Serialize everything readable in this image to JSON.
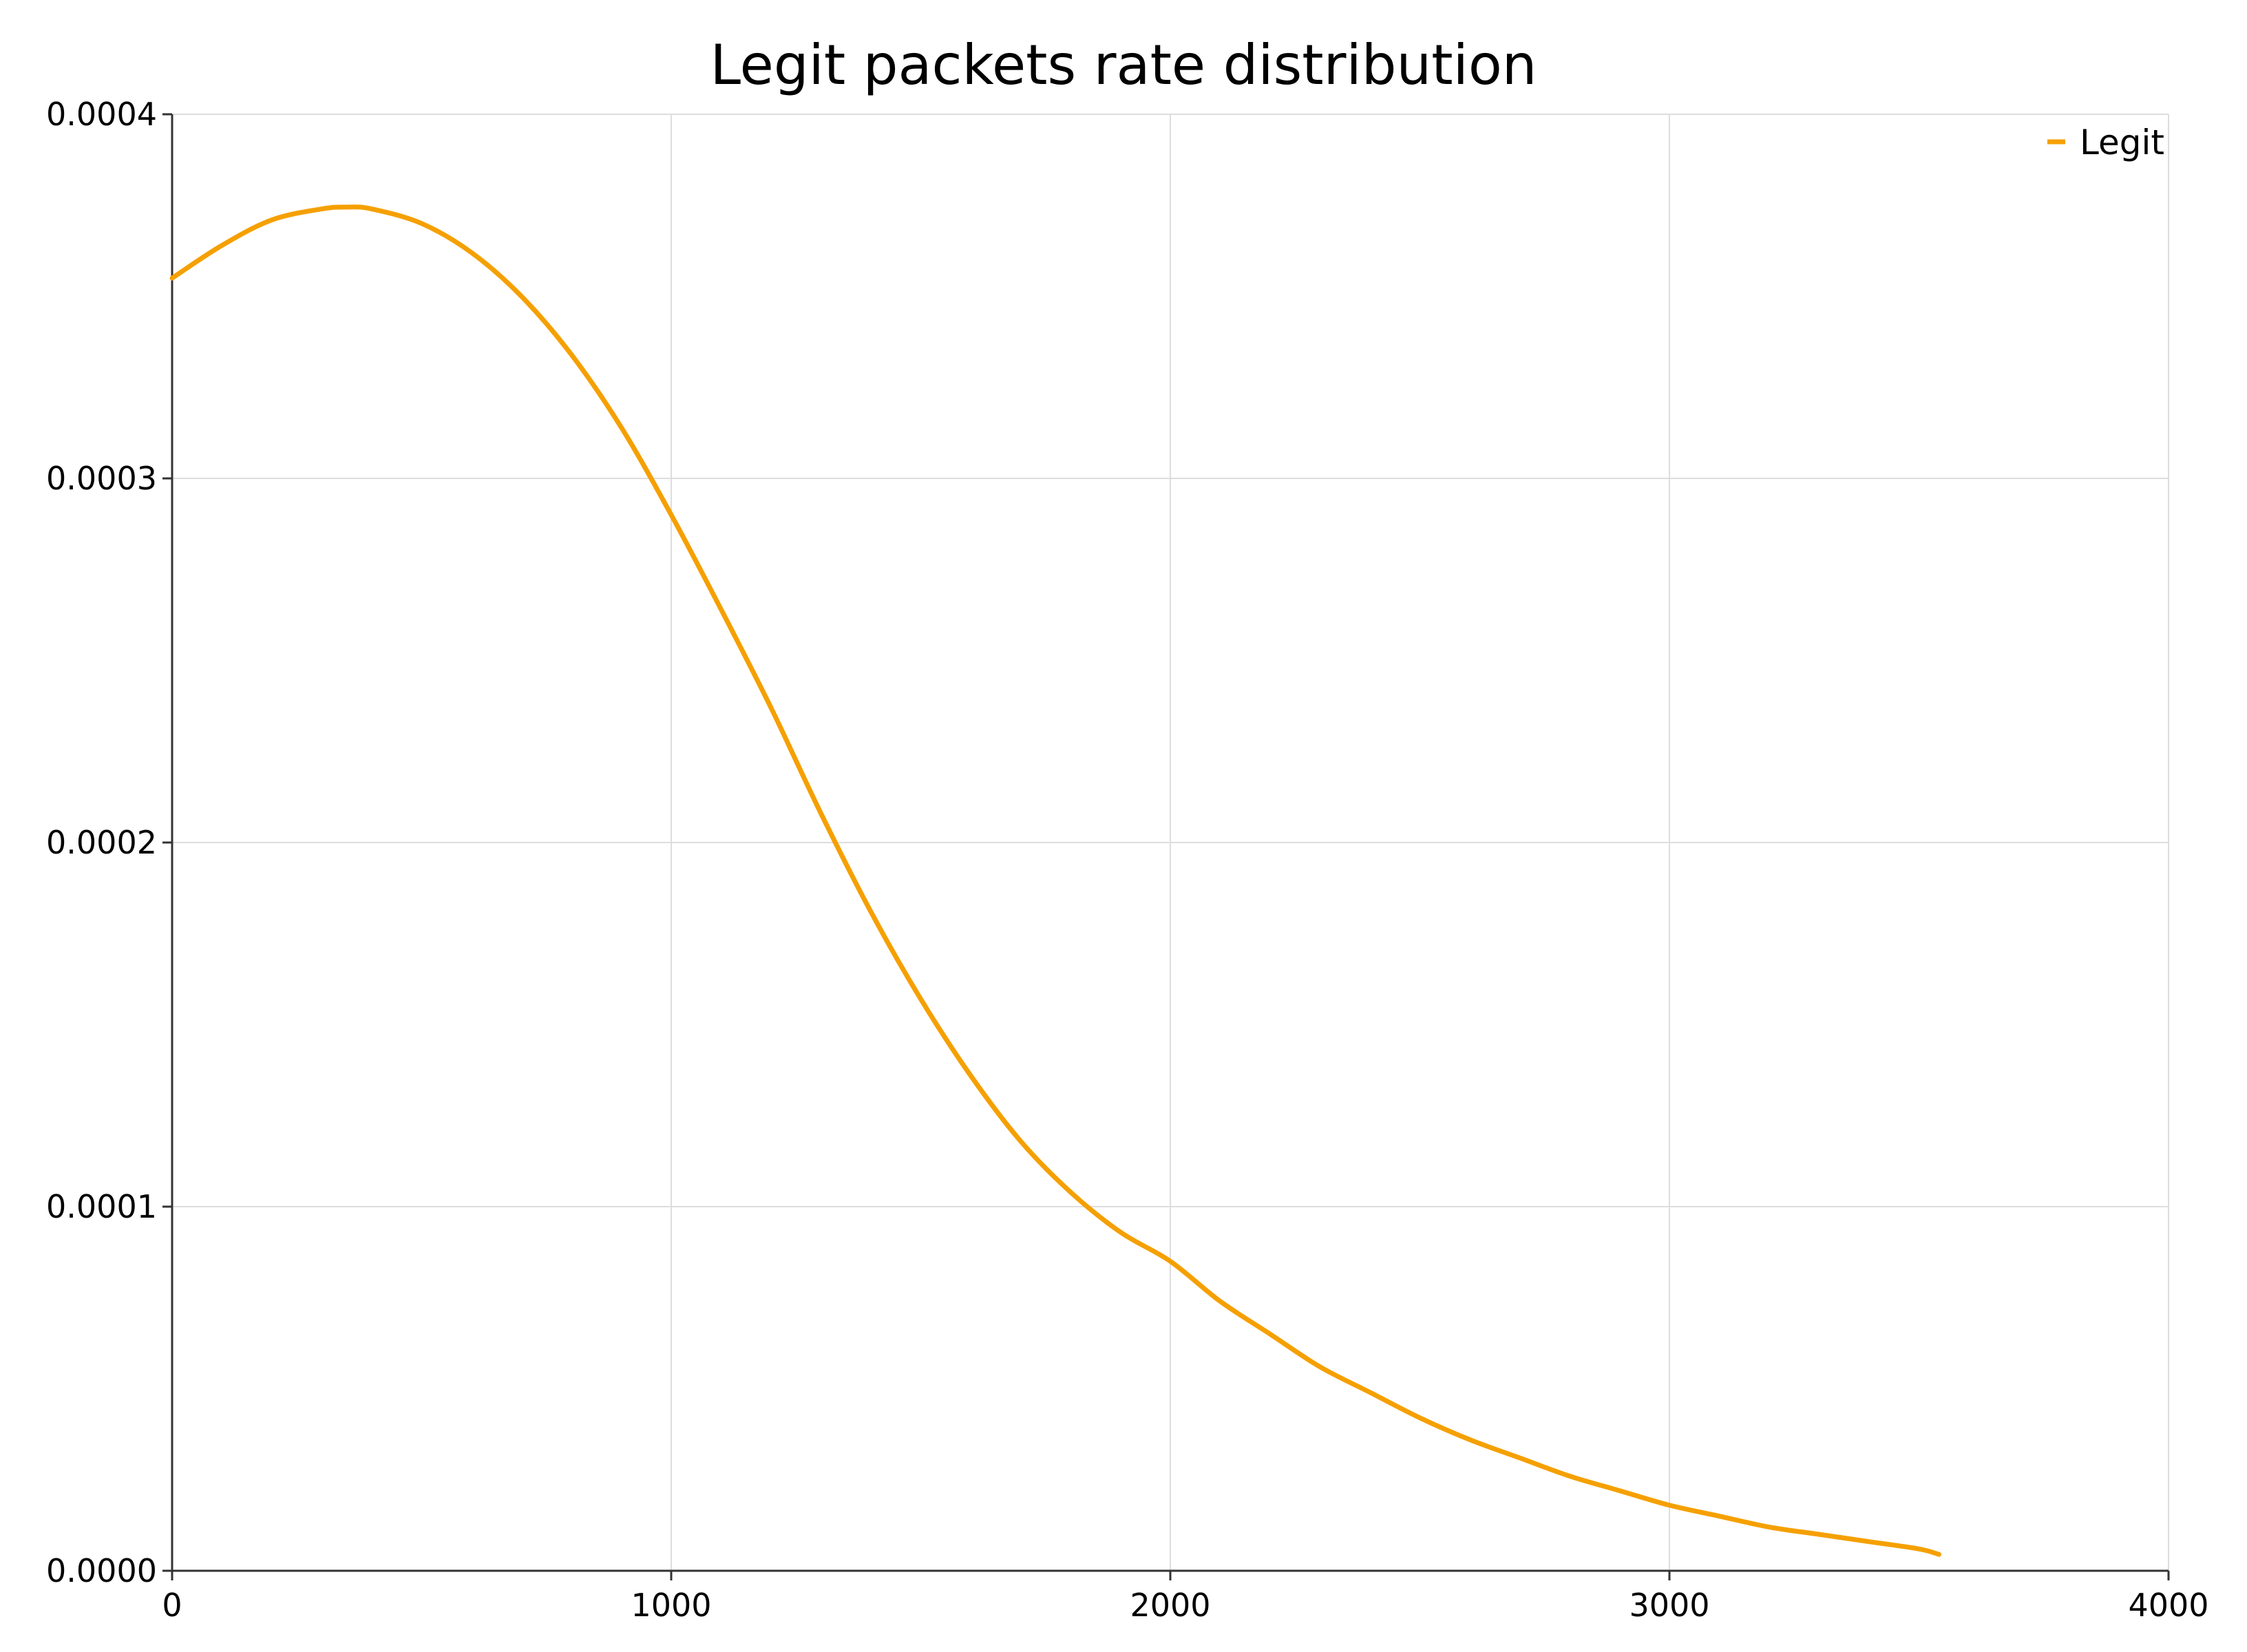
{
  "chart_data": {
    "type": "line",
    "title": "Legit packets rate distribution",
    "xlabel": "",
    "ylabel": "",
    "xlim": [
      0,
      4000
    ],
    "ylim": [
      0,
      0.0004
    ],
    "x_ticks": [
      "0",
      "1000",
      "2000",
      "3000",
      "4000"
    ],
    "y_ticks": [
      "0.0000",
      "0.0001",
      "0.0002",
      "0.0003",
      "0.0004"
    ],
    "grid": true,
    "legend_position": "top-right",
    "series": [
      {
        "name": "Legit",
        "color": "#f5a000",
        "x": [
          0,
          100,
          200,
          300,
          350,
          400,
          500,
          600,
          700,
          800,
          900,
          1000,
          1100,
          1200,
          1300,
          1400,
          1500,
          1600,
          1700,
          1800,
          1900,
          2000,
          2100,
          2200,
          2300,
          2400,
          2500,
          2600,
          2700,
          2800,
          2900,
          3000,
          3100,
          3200,
          3300,
          3400,
          3500,
          3540
        ],
        "y": [
          0.000355,
          0.000364,
          0.000371,
          0.000374,
          0.0003745,
          0.000374,
          0.00037,
          0.000362,
          0.00035,
          0.000334,
          0.000314,
          0.00029,
          0.000264,
          0.000237,
          0.000208,
          0.000181,
          0.000157,
          0.000136,
          0.000118,
          0.000104,
          9.3e-05,
          8.5e-05,
          7.4e-05,
          6.5e-05,
          5.6e-05,
          4.9e-05,
          4.2e-05,
          3.6e-05,
          3.1e-05,
          2.6e-05,
          2.2e-05,
          1.8e-05,
          1.5e-05,
          1.2e-05,
          1e-05,
          8e-06,
          6e-06,
          4.5e-06
        ]
      }
    ]
  }
}
